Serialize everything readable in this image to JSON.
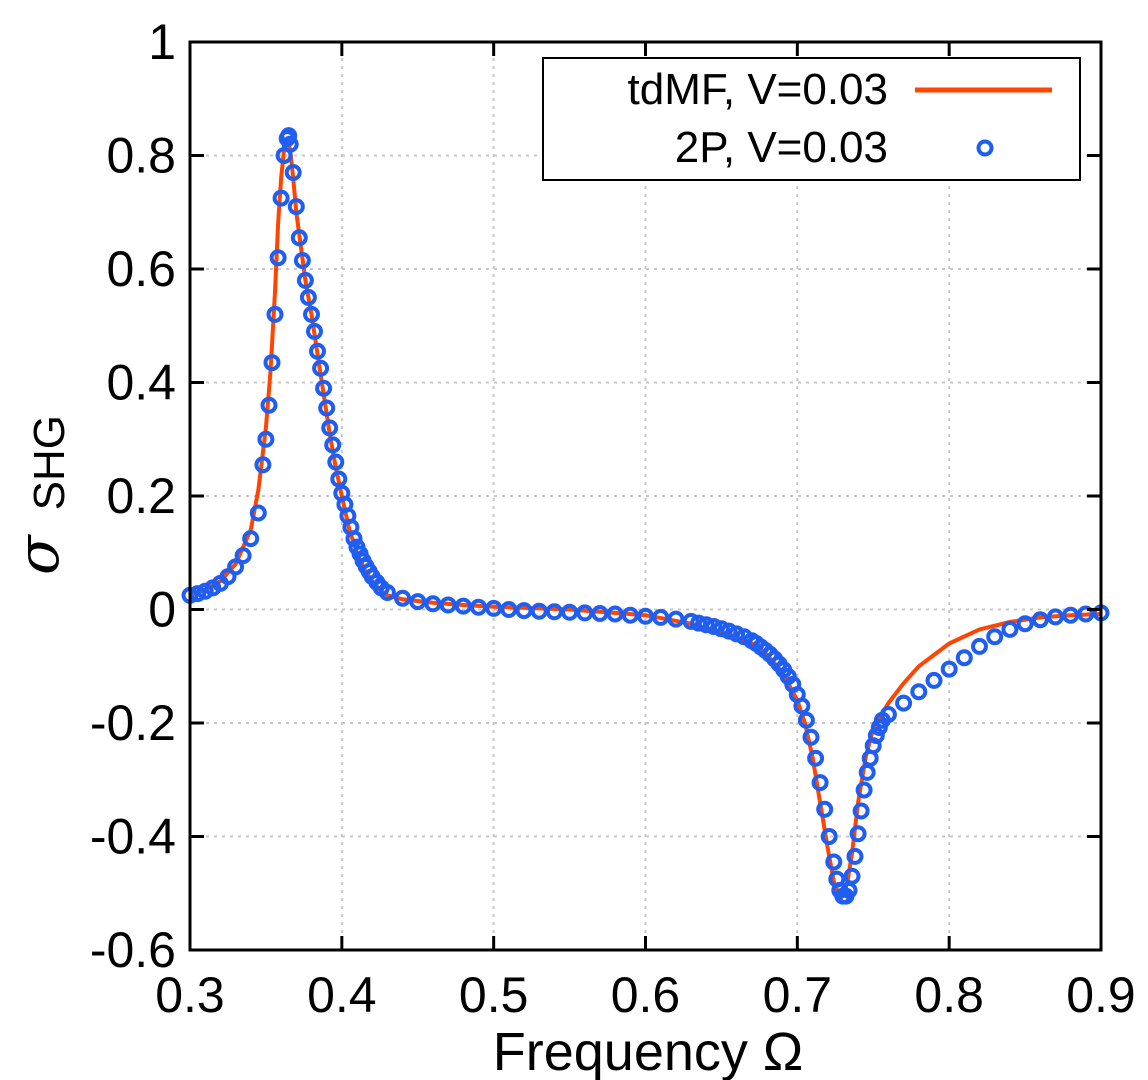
{
  "chart_data": {
    "type": "line",
    "title": "",
    "xlabel": "Frequency Ω",
    "ylabel_symbol": "σ",
    "ylabel_subscript": "SHG",
    "xlim": [
      0.3,
      0.9
    ],
    "ylim": [
      -0.6,
      1.0
    ],
    "grid": true,
    "legend_position": "top-right",
    "x_ticks": [
      0.3,
      0.4,
      0.5,
      0.6,
      0.7,
      0.8,
      0.9
    ],
    "x_tick_labels": [
      "0.3",
      "0.4",
      "0.5",
      "0.6",
      "0.7",
      "0.8",
      "0.9"
    ],
    "y_ticks": [
      -0.6,
      -0.4,
      -0.2,
      0,
      0.2,
      0.4,
      0.6,
      0.8,
      1.0
    ],
    "y_tick_labels": [
      "-0.6",
      "-0.4",
      "-0.2",
      "0",
      "0.2",
      "0.4",
      "0.6",
      "0.8",
      "1"
    ],
    "series": [
      {
        "name": "tdMF, V=0.03",
        "style": "line",
        "color": "#ff4500",
        "x": [
          0.3,
          0.31,
          0.32,
          0.33,
          0.34,
          0.345,
          0.35,
          0.353,
          0.356,
          0.358,
          0.36,
          0.362,
          0.364,
          0.366,
          0.368,
          0.37,
          0.373,
          0.376,
          0.38,
          0.384,
          0.388,
          0.392,
          0.396,
          0.4,
          0.405,
          0.41,
          0.415,
          0.42,
          0.425,
          0.43,
          0.44,
          0.46,
          0.48,
          0.5,
          0.55,
          0.6,
          0.63,
          0.65,
          0.67,
          0.68,
          0.69,
          0.7,
          0.705,
          0.71,
          0.715,
          0.72,
          0.724,
          0.727,
          0.73,
          0.733,
          0.736,
          0.74,
          0.745,
          0.75,
          0.76,
          0.77,
          0.78,
          0.8,
          0.82,
          0.84,
          0.86,
          0.88,
          0.9
        ],
        "y": [
          0.025,
          0.035,
          0.05,
          0.08,
          0.14,
          0.21,
          0.32,
          0.42,
          0.56,
          0.68,
          0.76,
          0.81,
          0.83,
          0.81,
          0.76,
          0.7,
          0.64,
          0.58,
          0.52,
          0.45,
          0.38,
          0.31,
          0.25,
          0.2,
          0.14,
          0.1,
          0.07,
          0.05,
          0.035,
          0.025,
          0.018,
          0.012,
          0.008,
          0.005,
          0.0,
          -0.01,
          -0.025,
          -0.04,
          -0.06,
          -0.08,
          -0.11,
          -0.16,
          -0.2,
          -0.26,
          -0.34,
          -0.42,
          -0.48,
          -0.5,
          -0.505,
          -0.48,
          -0.43,
          -0.34,
          -0.26,
          -0.21,
          -0.165,
          -0.13,
          -0.1,
          -0.06,
          -0.035,
          -0.022,
          -0.014,
          -0.01,
          -0.008
        ]
      },
      {
        "name": "2P, V=0.03",
        "style": "markers",
        "color": "#1f5ef0",
        "x": [
          0.3,
          0.305,
          0.31,
          0.315,
          0.32,
          0.325,
          0.33,
          0.335,
          0.34,
          0.345,
          0.348,
          0.35,
          0.352,
          0.354,
          0.356,
          0.358,
          0.36,
          0.362,
          0.364,
          0.365,
          0.366,
          0.368,
          0.37,
          0.372,
          0.374,
          0.376,
          0.378,
          0.38,
          0.382,
          0.384,
          0.386,
          0.388,
          0.39,
          0.392,
          0.394,
          0.396,
          0.398,
          0.4,
          0.402,
          0.404,
          0.406,
          0.408,
          0.41,
          0.412,
          0.414,
          0.416,
          0.418,
          0.42,
          0.423,
          0.426,
          0.43,
          0.44,
          0.45,
          0.46,
          0.47,
          0.48,
          0.49,
          0.5,
          0.51,
          0.52,
          0.53,
          0.54,
          0.55,
          0.56,
          0.57,
          0.58,
          0.59,
          0.6,
          0.61,
          0.62,
          0.63,
          0.635,
          0.64,
          0.645,
          0.65,
          0.655,
          0.66,
          0.665,
          0.67,
          0.673,
          0.676,
          0.679,
          0.682,
          0.685,
          0.688,
          0.691,
          0.694,
          0.697,
          0.7,
          0.703,
          0.706,
          0.709,
          0.712,
          0.715,
          0.718,
          0.721,
          0.724,
          0.726,
          0.728,
          0.73,
          0.732,
          0.734,
          0.736,
          0.738,
          0.74,
          0.742,
          0.744,
          0.746,
          0.748,
          0.75,
          0.752,
          0.754,
          0.756,
          0.76,
          0.77,
          0.78,
          0.79,
          0.8,
          0.81,
          0.82,
          0.83,
          0.84,
          0.85,
          0.86,
          0.87,
          0.88,
          0.89,
          0.9
        ],
        "y": [
          0.025,
          0.028,
          0.032,
          0.038,
          0.046,
          0.058,
          0.075,
          0.095,
          0.125,
          0.17,
          0.255,
          0.3,
          0.36,
          0.435,
          0.52,
          0.62,
          0.725,
          0.8,
          0.83,
          0.835,
          0.82,
          0.77,
          0.71,
          0.655,
          0.615,
          0.58,
          0.55,
          0.52,
          0.49,
          0.455,
          0.425,
          0.39,
          0.355,
          0.32,
          0.29,
          0.26,
          0.23,
          0.205,
          0.185,
          0.165,
          0.145,
          0.125,
          0.11,
          0.098,
          0.086,
          0.076,
          0.067,
          0.058,
          0.048,
          0.038,
          0.03,
          0.02,
          0.014,
          0.01,
          0.008,
          0.006,
          0.004,
          0.002,
          0.0,
          -0.002,
          -0.003,
          -0.004,
          -0.005,
          -0.006,
          -0.007,
          -0.008,
          -0.01,
          -0.012,
          -0.014,
          -0.017,
          -0.021,
          -0.024,
          -0.027,
          -0.03,
          -0.034,
          -0.038,
          -0.043,
          -0.048,
          -0.055,
          -0.06,
          -0.066,
          -0.072,
          -0.079,
          -0.087,
          -0.096,
          -0.106,
          -0.118,
          -0.132,
          -0.15,
          -0.17,
          -0.195,
          -0.225,
          -0.262,
          -0.305,
          -0.352,
          -0.4,
          -0.445,
          -0.475,
          -0.495,
          -0.505,
          -0.505,
          -0.495,
          -0.47,
          -0.435,
          -0.395,
          -0.355,
          -0.318,
          -0.287,
          -0.262,
          -0.24,
          -0.222,
          -0.208,
          -0.195,
          -0.185,
          -0.165,
          -0.145,
          -0.125,
          -0.105,
          -0.085,
          -0.065,
          -0.048,
          -0.035,
          -0.025,
          -0.018,
          -0.013,
          -0.01,
          -0.008,
          -0.006
        ]
      }
    ]
  }
}
